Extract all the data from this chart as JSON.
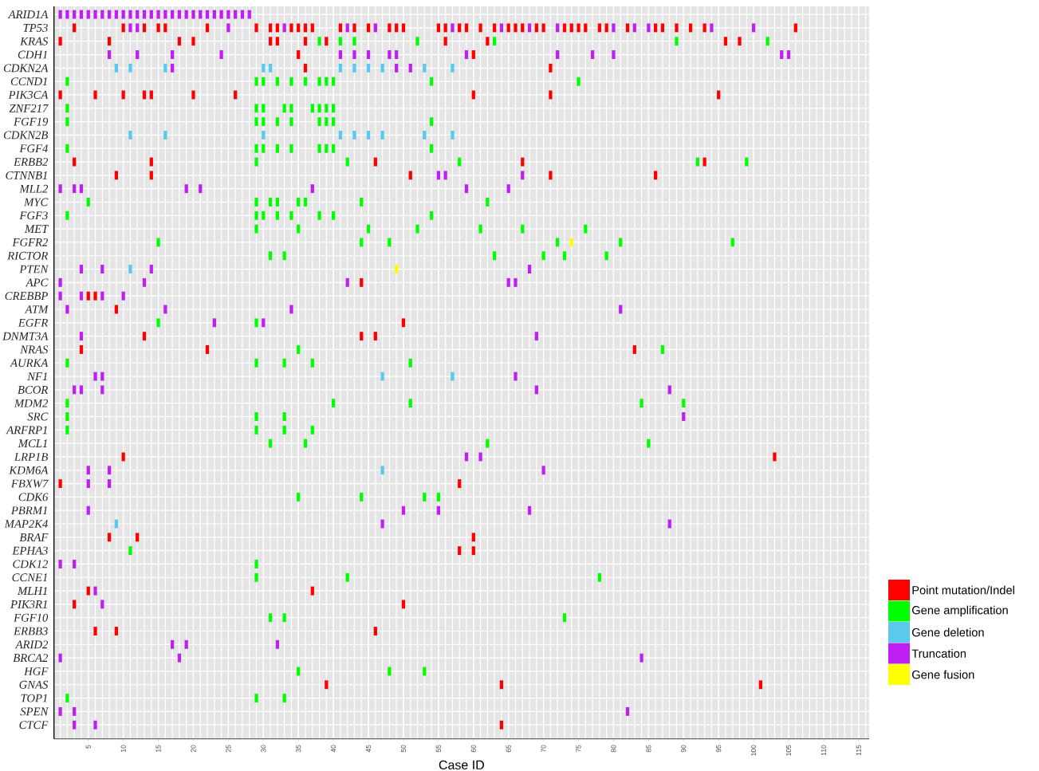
{
  "chart_data": {
    "type": "scatter",
    "orientation": "horizontal",
    "xlabel": "Case ID",
    "grid": true,
    "legend": "bottom right",
    "marker": "square",
    "xlim": [
      0.1,
      116.5
    ],
    "xticks": [
      5,
      10,
      15,
      20,
      25,
      30,
      35,
      40,
      45,
      50,
      55,
      60,
      65,
      70,
      75,
      80,
      85,
      90,
      95,
      100,
      105,
      110,
      115
    ],
    "categories": [
      "ARID1A",
      "TP53",
      "KRAS",
      "CDH1",
      "CDKN2A",
      "CCND1",
      "PIK3CA",
      "ZNF217",
      "FGF19",
      "CDKN2B",
      "FGF4",
      "ERBB2",
      "CTNNB1",
      "MLL2",
      "MYC",
      "FGF3",
      "MET",
      "FGFR2",
      "RICTOR",
      "PTEN",
      "APC",
      "CREBBP",
      "ATM",
      "EGFR",
      "DNMT3A",
      "NRAS",
      "AURKA",
      "NF1",
      "BCOR",
      "MDM2",
      "SRC",
      "ARFRP1",
      "MCL1",
      "LRP1B",
      "KDM6A",
      "FBXW7",
      "CDK6",
      "PBRM1",
      "MAP2K4",
      "BRAF",
      "EPHA3",
      "CDK12",
      "CCNE1",
      "MLH1",
      "PIK3R1",
      "FGF10",
      "ERBB3",
      "ARID2",
      "BRCA2",
      "HGF",
      "GNAS",
      "TOP1",
      "SPEN",
      "CTCF"
    ],
    "series": [
      {
        "name": "Point mutation/Indel",
        "color": "#ff0000",
        "x": [
          "TP53",
          "TP53",
          "TP53",
          "TP53",
          "TP53",
          "TP53",
          "TP53",
          "TP53",
          "TP53",
          "TP53",
          "TP53",
          "TP53",
          "TP53",
          "TP53",
          "TP53",
          "TP53",
          "TP53",
          "TP53",
          "TP53",
          "TP53",
          "TP53",
          "TP53",
          "TP53",
          "TP53",
          "TP53",
          "TP53",
          "TP53",
          "TP53",
          "TP53",
          "TP53",
          "TP53",
          "TP53",
          "TP53",
          "TP53",
          "TP53",
          "TP53",
          "TP53",
          "TP53",
          "TP53",
          "TP53",
          "TP53",
          "TP53",
          "TP53",
          "KRAS",
          "KRAS",
          "KRAS",
          "KRAS",
          "KRAS",
          "KRAS",
          "KRAS",
          "KRAS",
          "KRAS",
          "KRAS",
          "KRAS",
          "KRAS",
          "CDH1",
          "CDH1",
          "CDKN2A",
          "CDKN2A",
          "PIK3CA",
          "PIK3CA",
          "PIK3CA",
          "PIK3CA",
          "PIK3CA",
          "PIK3CA",
          "PIK3CA",
          "PIK3CA",
          "PIK3CA",
          "PIK3CA",
          "ERBB2",
          "ERBB2",
          "ERBB2",
          "ERBB2",
          "ERBB2",
          "CTNNB1",
          "CTNNB1",
          "CTNNB1",
          "CTNNB1",
          "CTNNB1",
          "APC",
          "CREBBP",
          "CREBBP",
          "ATM",
          "EGFR",
          "DNMT3A",
          "DNMT3A",
          "DNMT3A",
          "NRAS",
          "NRAS",
          "NRAS",
          "LRP1B",
          "LRP1B",
          "FBXW7",
          "FBXW7",
          "BRAF",
          "BRAF",
          "BRAF",
          "EPHA3",
          "EPHA3",
          "MLH1",
          "MLH1",
          "PIK3R1",
          "PIK3R1",
          "ERBB3",
          "ERBB3",
          "ERBB3",
          "GNAS",
          "GNAS",
          "GNAS",
          "CTCF"
        ],
        "values": [
          3,
          10,
          13,
          15,
          16,
          22,
          29,
          31,
          32,
          34,
          35,
          36,
          37,
          41,
          43,
          45,
          48,
          49,
          50,
          55,
          56,
          58,
          59,
          61,
          63,
          65,
          66,
          67,
          69,
          70,
          73,
          74,
          75,
          76,
          78,
          79,
          82,
          86,
          87,
          89,
          91,
          93,
          106,
          1,
          8,
          18,
          20,
          31,
          32,
          36,
          39,
          56,
          62,
          96,
          98,
          35,
          60,
          36,
          71,
          1,
          6,
          10,
          13,
          14,
          20,
          26,
          60,
          71,
          95,
          3,
          14,
          46,
          67,
          93,
          9,
          14,
          51,
          71,
          86,
          44,
          5,
          6,
          9,
          50,
          13,
          44,
          46,
          4,
          22,
          83,
          10,
          103,
          1,
          58,
          8,
          12,
          60,
          58,
          60,
          5,
          37,
          3,
          50,
          6,
          9,
          46,
          39,
          64,
          101,
          64
        ]
      },
      {
        "name": "Gene amplification",
        "color": "#00ff00",
        "x": [
          "KRAS",
          "KRAS",
          "KRAS",
          "KRAS",
          "KRAS",
          "KRAS",
          "KRAS",
          "CCND1",
          "CCND1",
          "CCND1",
          "CCND1",
          "CCND1",
          "CCND1",
          "CCND1",
          "CCND1",
          "CCND1",
          "CCND1",
          "CCND1",
          "ZNF217",
          "ZNF217",
          "ZNF217",
          "ZNF217",
          "ZNF217",
          "ZNF217",
          "ZNF217",
          "ZNF217",
          "ZNF217",
          "FGF19",
          "FGF19",
          "FGF19",
          "FGF19",
          "FGF19",
          "FGF19",
          "FGF19",
          "FGF19",
          "FGF19",
          "FGF4",
          "FGF4",
          "FGF4",
          "FGF4",
          "FGF4",
          "FGF4",
          "FGF4",
          "FGF4",
          "FGF4",
          "ERBB2",
          "ERBB2",
          "ERBB2",
          "ERBB2",
          "ERBB2",
          "MYC",
          "MYC",
          "MYC",
          "MYC",
          "MYC",
          "MYC",
          "MYC",
          "MYC",
          "FGF3",
          "FGF3",
          "FGF3",
          "FGF3",
          "FGF3",
          "FGF3",
          "FGF3",
          "FGF3",
          "MET",
          "MET",
          "MET",
          "MET",
          "MET",
          "MET",
          "MET",
          "FGFR2",
          "FGFR2",
          "FGFR2",
          "FGFR2",
          "FGFR2",
          "FGFR2",
          "RICTOR",
          "RICTOR",
          "RICTOR",
          "RICTOR",
          "RICTOR",
          "RICTOR",
          "EGFR",
          "EGFR",
          "NRAS",
          "NRAS",
          "AURKA",
          "AURKA",
          "AURKA",
          "AURKA",
          "AURKA",
          "MDM2",
          "MDM2",
          "MDM2",
          "MDM2",
          "MDM2",
          "SRC",
          "SRC",
          "SRC",
          "ARFRP1",
          "ARFRP1",
          "ARFRP1",
          "ARFRP1",
          "MCL1",
          "MCL1",
          "MCL1",
          "MCL1",
          "CDK6",
          "CDK6",
          "CDK6",
          "CDK6",
          "EPHA3",
          "CDK12",
          "CCNE1",
          "CCNE1",
          "CCNE1",
          "FGF10",
          "FGF10",
          "FGF10",
          "HGF",
          "HGF",
          "HGF",
          "TOP1",
          "TOP1",
          "TOP1"
        ],
        "values": [
          38,
          41,
          43,
          52,
          63,
          89,
          102,
          2,
          29,
          30,
          32,
          34,
          36,
          38,
          39,
          40,
          54,
          75,
          2,
          29,
          30,
          33,
          34,
          37,
          38,
          39,
          40,
          2,
          29,
          30,
          32,
          34,
          38,
          39,
          40,
          54,
          2,
          29,
          30,
          32,
          34,
          38,
          39,
          40,
          54,
          29,
          42,
          58,
          92,
          99,
          5,
          29,
          31,
          32,
          35,
          36,
          44,
          62,
          2,
          29,
          30,
          32,
          34,
          38,
          40,
          54,
          29,
          35,
          45,
          52,
          61,
          67,
          76,
          15,
          44,
          48,
          72,
          81,
          97,
          31,
          33,
          63,
          70,
          73,
          79,
          15,
          29,
          35,
          87,
          2,
          29,
          33,
          37,
          51,
          2,
          40,
          51,
          84,
          90,
          2,
          29,
          33,
          2,
          29,
          33,
          37,
          31,
          36,
          62,
          85,
          35,
          44,
          53,
          55,
          11,
          29,
          29,
          42,
          78,
          31,
          33,
          73,
          35,
          48,
          53,
          2,
          29,
          33
        ]
      },
      {
        "name": "Gene deletion",
        "color": "#5bc9eb",
        "x": [
          "CDKN2A",
          "CDKN2A",
          "CDKN2A",
          "CDKN2A",
          "CDKN2A",
          "CDKN2A",
          "CDKN2A",
          "CDKN2A",
          "CDKN2A",
          "CDKN2A",
          "CDKN2A",
          "CDKN2B",
          "CDKN2B",
          "CDKN2B",
          "CDKN2B",
          "CDKN2B",
          "CDKN2B",
          "CDKN2B",
          "CDKN2B",
          "CDKN2B",
          "PTEN",
          "NF1",
          "NF1",
          "KDM6A",
          "MAP2K4"
        ],
        "values": [
          9,
          11,
          16,
          30,
          31,
          41,
          43,
          45,
          47,
          53,
          57,
          11,
          16,
          30,
          41,
          43,
          45,
          47,
          53,
          57,
          11,
          47,
          57,
          47,
          9
        ]
      },
      {
        "name": "Truncation",
        "color": "#bf1ff2",
        "x": [
          "ARID1A",
          "ARID1A",
          "ARID1A",
          "ARID1A",
          "ARID1A",
          "ARID1A",
          "ARID1A",
          "ARID1A",
          "ARID1A",
          "ARID1A",
          "ARID1A",
          "ARID1A",
          "ARID1A",
          "ARID1A",
          "ARID1A",
          "ARID1A",
          "ARID1A",
          "ARID1A",
          "ARID1A",
          "ARID1A",
          "ARID1A",
          "ARID1A",
          "ARID1A",
          "ARID1A",
          "ARID1A",
          "ARID1A",
          "ARID1A",
          "ARID1A",
          "TP53",
          "TP53",
          "TP53",
          "TP53",
          "TP53",
          "TP53",
          "TP53",
          "TP53",
          "TP53",
          "TP53",
          "TP53",
          "TP53",
          "TP53",
          "TP53",
          "TP53",
          "CDH1",
          "CDH1",
          "CDH1",
          "CDH1",
          "CDH1",
          "CDH1",
          "CDH1",
          "CDH1",
          "CDH1",
          "CDH1",
          "CDH1",
          "CDH1",
          "CDH1",
          "CDH1",
          "CDH1",
          "CDKN2A",
          "CDKN2A",
          "CDKN2A",
          "CTNNB1",
          "CTNNB1",
          "CTNNB1",
          "MLL2",
          "MLL2",
          "MLL2",
          "MLL2",
          "MLL2",
          "MLL2",
          "MLL2",
          "MLL2",
          "PTEN",
          "PTEN",
          "PTEN",
          "PTEN",
          "APC",
          "APC",
          "APC",
          "APC",
          "APC",
          "CREBBP",
          "CREBBP",
          "CREBBP",
          "CREBBP",
          "ATM",
          "ATM",
          "ATM",
          "ATM",
          "EGFR",
          "EGFR",
          "DNMT3A",
          "DNMT3A",
          "NF1",
          "NF1",
          "NF1",
          "BCOR",
          "BCOR",
          "BCOR",
          "BCOR",
          "BCOR",
          "SRC",
          "LRP1B",
          "LRP1B",
          "KDM6A",
          "KDM6A",
          "KDM6A",
          "FBXW7",
          "FBXW7",
          "PBRM1",
          "PBRM1",
          "PBRM1",
          "PBRM1",
          "MAP2K4",
          "MAP2K4",
          "CDK12",
          "CDK12",
          "MLH1",
          "PIK3R1",
          "ARID2",
          "ARID2",
          "ARID2",
          "BRCA2",
          "BRCA2",
          "BRCA2",
          "SPEN",
          "SPEN",
          "SPEN",
          "CTCF",
          "CTCF"
        ],
        "values": [
          1,
          2,
          3,
          4,
          5,
          6,
          7,
          8,
          9,
          10,
          11,
          12,
          13,
          14,
          15,
          16,
          17,
          18,
          19,
          20,
          21,
          22,
          23,
          24,
          25,
          26,
          27,
          28,
          11,
          12,
          25,
          33,
          42,
          46,
          57,
          64,
          68,
          72,
          80,
          83,
          85,
          94,
          100,
          8,
          12,
          17,
          24,
          41,
          43,
          45,
          48,
          49,
          59,
          72,
          77,
          80,
          104,
          105,
          17,
          49,
          51,
          55,
          56,
          67,
          1,
          3,
          4,
          19,
          21,
          37,
          59,
          65,
          4,
          7,
          14,
          68,
          1,
          13,
          42,
          65,
          66,
          1,
          4,
          7,
          10,
          2,
          16,
          34,
          81,
          23,
          30,
          4,
          69,
          6,
          7,
          66,
          3,
          4,
          7,
          69,
          88,
          90,
          59,
          61,
          5,
          8,
          70,
          5,
          8,
          5,
          50,
          55,
          68,
          47,
          88,
          1,
          3,
          6,
          7,
          17,
          19,
          32,
          1,
          18,
          84,
          1,
          3,
          82,
          3,
          6
        ]
      },
      {
        "name": "Gene fusion",
        "color": "#ffff00",
        "x": [
          "FGFR2",
          "PTEN"
        ],
        "values": [
          74,
          49
        ]
      }
    ]
  }
}
